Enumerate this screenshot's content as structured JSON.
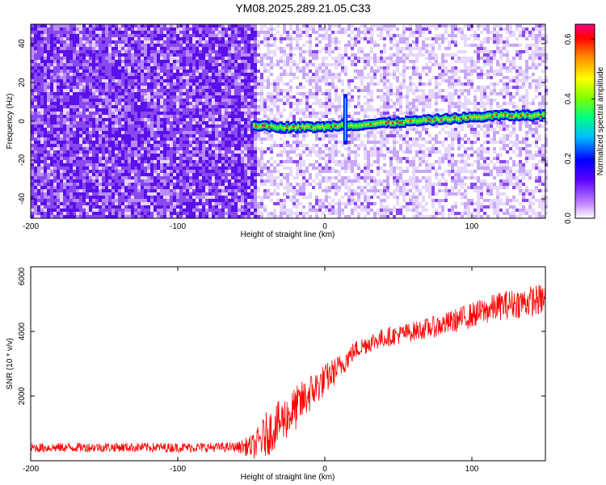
{
  "title": "YM08.2025.289.21.05.C33",
  "chart_data": [
    {
      "type": "heatmap",
      "xlabel": "Height of straight line (km)",
      "ylabel": "Frequency (Hz)",
      "xlim": [
        -200,
        150
      ],
      "ylim": [
        -50,
        50
      ],
      "xticks": [
        -200,
        -100,
        0,
        100
      ],
      "yticks": [
        -40,
        -20,
        0,
        20,
        40
      ],
      "colorbar": {
        "label": "Normalized spectral amplitude",
        "range": [
          0.0,
          0.65
        ],
        "ticks": [
          0.0,
          0.2,
          0.4,
          0.6
        ],
        "tick_labels": [
          "0.0",
          "0.2",
          "0.4",
          "0.6"
        ]
      },
      "signal_onset_x": -48,
      "spike_x": 14,
      "ridge": {
        "x": [
          -48,
          -30,
          -10,
          0,
          10,
          20,
          40,
          60,
          80,
          100,
          120,
          150
        ],
        "frequency": [
          -2,
          -3,
          -3,
          -3,
          -2,
          -2,
          -1,
          0,
          1,
          2,
          3,
          3
        ]
      }
    },
    {
      "type": "line",
      "xlabel": "Height of straight line (km)",
      "ylabel": "SNR (10 * v/v)",
      "xlim": [
        -200,
        150
      ],
      "ylim": [
        0,
        6000
      ],
      "xticks": [
        -200,
        -100,
        0,
        100
      ],
      "yticks": [
        2000,
        4000,
        6000
      ],
      "series": [
        {
          "color": "#ff0000",
          "x": [
            -200,
            -150,
            -100,
            -60,
            -48,
            -40,
            -30,
            -20,
            -10,
            0,
            10,
            20,
            30,
            40,
            60,
            80,
            100,
            120,
            150
          ],
          "values": [
            400,
            420,
            410,
            420,
            450,
            800,
            1200,
            1600,
            2100,
            2500,
            2900,
            3400,
            3650,
            3800,
            4000,
            4200,
            4500,
            4800,
            5000
          ],
          "noise_amplitude": [
            150,
            150,
            150,
            150,
            400,
            700,
            700,
            700,
            600,
            500,
            400,
            300,
            300,
            300,
            300,
            350,
            400,
            450,
            500
          ]
        }
      ]
    }
  ]
}
